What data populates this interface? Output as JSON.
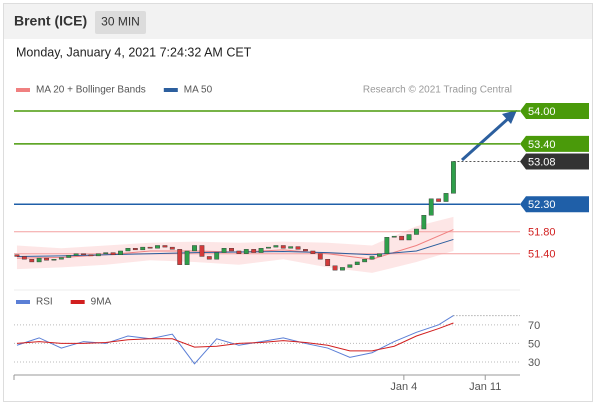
{
  "header": {
    "title": "Brent (ICE)",
    "interval": "30 MIN",
    "date": "Monday, January 4, 2021 7:24:32 AM CET"
  },
  "chart_data": [
    {
      "type": "candlestick",
      "source": "Research © 2021 Trading Central",
      "xlim": [
        -0.4,
        68
      ],
      "ylim": [
        50.83,
        54.2
      ],
      "up_color": "#2e9e4a",
      "down_color": "#d33a3a",
      "open": [
        51.38,
        51.35,
        51.3,
        51.25,
        51.32,
        51.28,
        51.3,
        51.33,
        51.37,
        51.4,
        51.38,
        51.36,
        51.4,
        51.42,
        51.38,
        51.45,
        51.5,
        51.47,
        51.52,
        51.5,
        51.55,
        51.52,
        51.48,
        51.2,
        51.45,
        51.55,
        51.35,
        51.3,
        51.42,
        51.5,
        51.45,
        51.4,
        51.48,
        51.42,
        51.5,
        51.52,
        51.55,
        51.5,
        51.53,
        51.48,
        51.45,
        51.4,
        51.3,
        51.18,
        51.1,
        51.15,
        51.2,
        51.25,
        51.3,
        51.35,
        51.4,
        51.7,
        51.72,
        51.65,
        51.75,
        51.85,
        52.1,
        52.4,
        52.35,
        52.5
      ],
      "close": [
        51.35,
        51.3,
        51.25,
        51.32,
        51.28,
        51.3,
        51.33,
        51.37,
        51.4,
        51.38,
        51.36,
        51.4,
        51.42,
        51.38,
        51.45,
        51.5,
        51.47,
        51.52,
        51.5,
        51.55,
        51.52,
        51.48,
        51.2,
        51.45,
        51.55,
        51.35,
        51.3,
        51.42,
        51.5,
        51.45,
        51.4,
        51.48,
        51.42,
        51.5,
        51.52,
        51.55,
        51.5,
        51.53,
        51.48,
        51.45,
        51.4,
        51.3,
        51.18,
        51.1,
        51.15,
        51.2,
        51.25,
        51.3,
        51.35,
        51.4,
        51.7,
        51.72,
        51.65,
        51.75,
        51.85,
        52.1,
        52.4,
        52.35,
        52.5,
        53.08
      ],
      "overlays": [
        {
          "name": "MA 20 + Bollinger Bands",
          "color": "#f08080",
          "band_color": "#fde0e0",
          "x": [
            0,
            6,
            12,
            18,
            24,
            30,
            36,
            42,
            48,
            54,
            59
          ],
          "values": [
            51.32,
            51.33,
            51.38,
            51.45,
            51.45,
            51.43,
            51.47,
            51.4,
            51.3,
            51.55,
            51.84
          ],
          "upper": [
            51.55,
            51.5,
            51.55,
            51.6,
            51.62,
            51.6,
            51.62,
            51.6,
            51.55,
            51.9,
            52.07
          ],
          "lower": [
            51.12,
            51.15,
            51.2,
            51.28,
            51.25,
            51.2,
            51.3,
            51.15,
            51.05,
            51.25,
            51.45
          ]
        },
        {
          "name": "MA 50",
          "color": "#2c5f9e",
          "x": [
            0,
            6,
            12,
            18,
            24,
            30,
            36,
            42,
            48,
            54,
            59
          ],
          "values": [
            51.35,
            51.36,
            51.38,
            51.4,
            51.42,
            51.43,
            51.44,
            51.42,
            51.38,
            51.45,
            51.66
          ]
        }
      ],
      "levels": [
        {
          "value": 54,
          "label": "54.00",
          "color": "#4a9a0a",
          "boxed": true,
          "dotted": false
        },
        {
          "value": 53.4,
          "label": "53.40",
          "color": "#4a9a0a",
          "boxed": true,
          "dotted": false
        },
        {
          "value": 53.08,
          "label": "53.08",
          "color": "#333333",
          "boxed": true,
          "dotted": true
        },
        {
          "value": 52.3,
          "label": "52.30",
          "color": "#1f5fa8",
          "boxed": true,
          "dotted": false
        },
        {
          "value": 51.8,
          "label": "51.80",
          "color": "#d11f1f",
          "boxed": false,
          "dotted": false
        },
        {
          "value": 51.4,
          "label": "51.40",
          "color": "#d11f1f",
          "boxed": false,
          "dotted": false
        }
      ]
    },
    {
      "type": "line",
      "xlim": [
        -0.4,
        68
      ],
      "ylim": [
        16,
        86
      ],
      "yticks": [
        30,
        50,
        70
      ],
      "grid": true,
      "xticks": [
        {
          "value": 52.3,
          "label": "Jan 4"
        },
        {
          "value": 63.3,
          "label": "Jan 11"
        }
      ],
      "series": [
        {
          "name": "RSI",
          "color": "#5b7fd6",
          "x": [
            0,
            3,
            6,
            9,
            12,
            15,
            18,
            21,
            24,
            27,
            30,
            33,
            36,
            39,
            42,
            45,
            48,
            51,
            54,
            57,
            59
          ],
          "values": [
            48,
            56,
            45,
            52,
            50,
            58,
            55,
            60,
            28,
            55,
            48,
            52,
            56,
            50,
            45,
            35,
            40,
            52,
            62,
            70,
            80
          ]
        },
        {
          "name": "9MA",
          "color": "#d11f1f",
          "x": [
            0,
            3,
            6,
            9,
            12,
            15,
            18,
            21,
            24,
            27,
            30,
            33,
            36,
            39,
            42,
            45,
            48,
            51,
            54,
            57,
            59
          ],
          "values": [
            50,
            52,
            50,
            50,
            51,
            54,
            55,
            55,
            46,
            47,
            50,
            51,
            53,
            51,
            48,
            42,
            42,
            47,
            58,
            66,
            72
          ]
        }
      ]
    }
  ]
}
